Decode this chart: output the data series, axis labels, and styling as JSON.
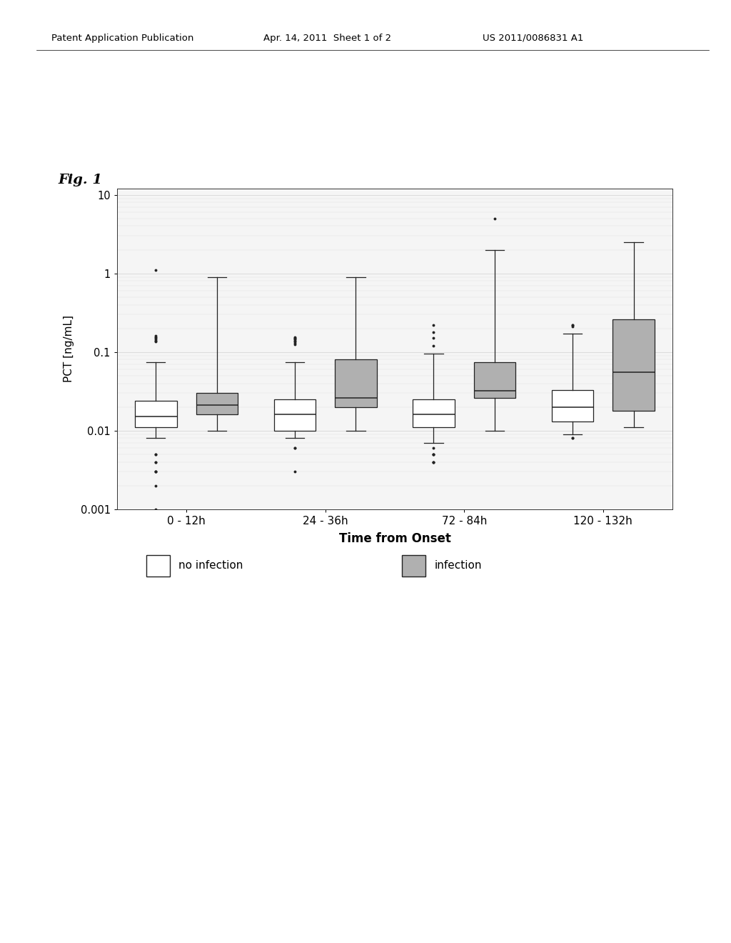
{
  "title": "Fig. 1",
  "xlabel": "Time from Onset",
  "ylabel": "PCT [ng/mL]",
  "time_labels": [
    "0 - 12h",
    "24 - 36h",
    "72 - 84h",
    "120 - 132h"
  ],
  "no_infection_color": "#ffffff",
  "infection_color": "#b0b0b0",
  "box_edge_color": "#222222",
  "no_infection": {
    "0_12h": {
      "q1": 0.011,
      "median": 0.015,
      "q3": 0.024,
      "whislo": 0.008,
      "whishi": 0.075,
      "fliers_high": [
        1.1,
        0.16,
        0.155,
        0.15,
        0.145,
        0.14,
        0.135
      ],
      "fliers_low": [
        0.005,
        0.005,
        0.004,
        0.004,
        0.003,
        0.003,
        0.003,
        0.002,
        0.001
      ]
    },
    "24_36h": {
      "q1": 0.01,
      "median": 0.016,
      "q3": 0.025,
      "whislo": 0.008,
      "whishi": 0.075,
      "fliers_high": [
        0.155,
        0.15,
        0.148,
        0.145,
        0.14,
        0.135,
        0.13,
        0.125
      ],
      "fliers_low": [
        0.006,
        0.006,
        0.003
      ]
    },
    "72_84h": {
      "q1": 0.011,
      "median": 0.016,
      "q3": 0.025,
      "whislo": 0.007,
      "whishi": 0.095,
      "fliers_high": [
        0.22,
        0.18,
        0.15,
        0.12
      ],
      "fliers_low": [
        0.006,
        0.005,
        0.005,
        0.005,
        0.004,
        0.004,
        0.004
      ]
    },
    "120_132h": {
      "q1": 0.013,
      "median": 0.02,
      "q3": 0.033,
      "whislo": 0.009,
      "whishi": 0.17,
      "fliers_high": [
        0.22,
        0.22,
        0.21
      ],
      "fliers_low": [
        0.008,
        0.008
      ]
    }
  },
  "infection": {
    "0_12h": {
      "q1": 0.016,
      "median": 0.021,
      "q3": 0.03,
      "whislo": 0.01,
      "whishi": 0.9,
      "fliers_high": [],
      "fliers_low": []
    },
    "24_36h": {
      "q1": 0.02,
      "median": 0.026,
      "q3": 0.08,
      "whislo": 0.01,
      "whishi": 0.9,
      "fliers_high": [],
      "fliers_low": []
    },
    "72_84h": {
      "q1": 0.026,
      "median": 0.032,
      "q3": 0.075,
      "whislo": 0.01,
      "whishi": 2.0,
      "fliers_high": [
        5.0
      ],
      "fliers_low": []
    },
    "120_132h": {
      "q1": 0.018,
      "median": 0.055,
      "q3": 0.26,
      "whislo": 0.011,
      "whishi": 2.5,
      "fliers_high": [],
      "fliers_low": []
    }
  },
  "header_text": "Patent Application Publication",
  "header_date": "Apr. 14, 2011  Sheet 1 of 2",
  "header_ref": "US 2011/0086831 A1"
}
